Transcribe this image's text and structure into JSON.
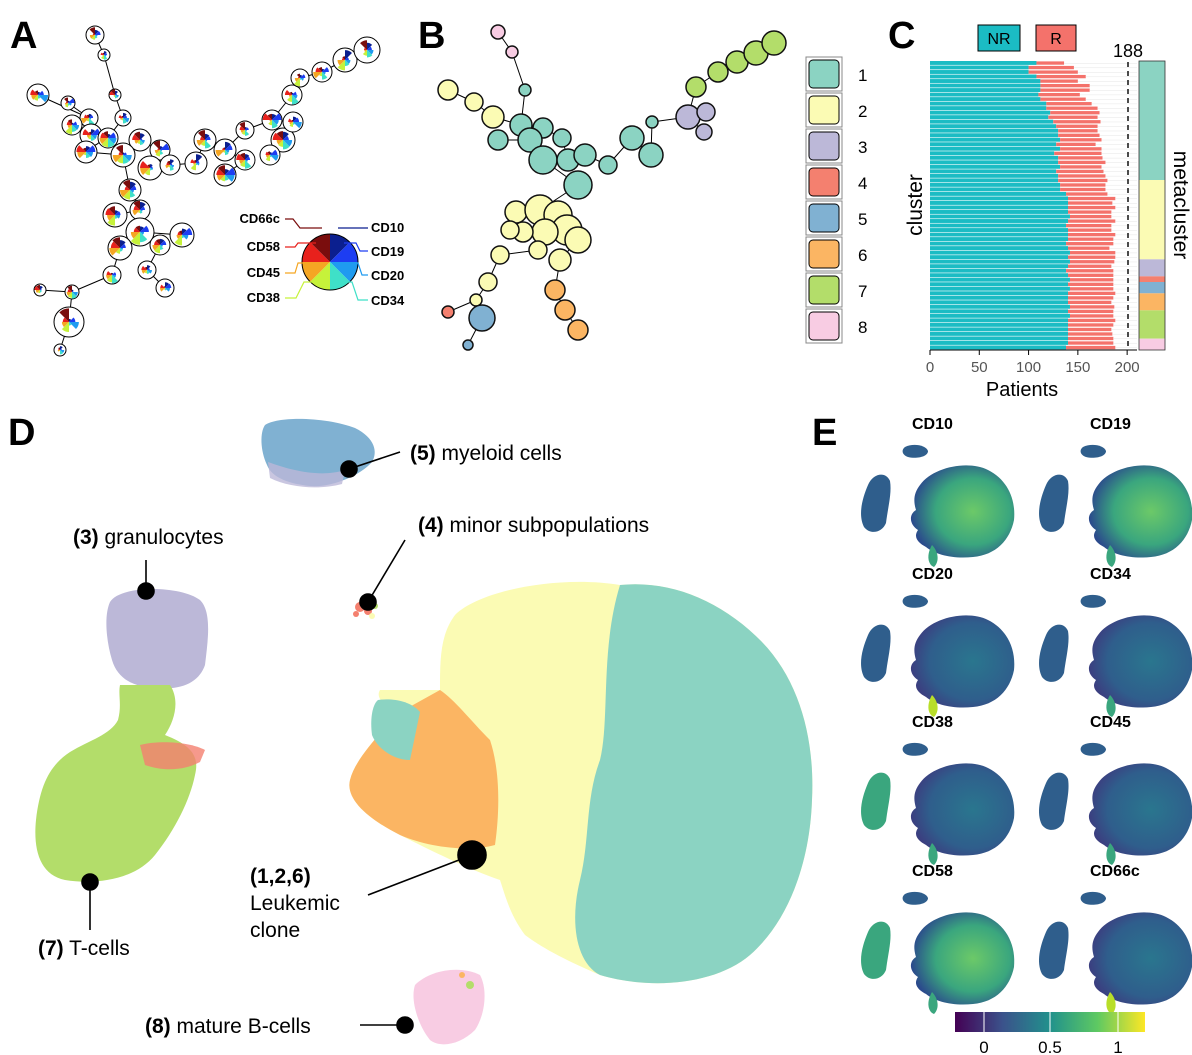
{
  "panels": {
    "a": "A",
    "b": "B",
    "c": "C",
    "d": "D",
    "e": "E"
  },
  "panel_a": {
    "markers_left": [
      "CD66c",
      "CD58",
      "CD45",
      "CD38"
    ],
    "markers_right": [
      "CD10",
      "CD19",
      "CD20",
      "CD34"
    ],
    "marker_colors": {
      "CD10": "#0b1f8f",
      "CD19": "#1d3df2",
      "CD20": "#1f9bf0",
      "CD34": "#3fe0c8",
      "CD38": "#c6f23a",
      "CD45": "#f5a623",
      "CD58": "#e8211c",
      "CD66c": "#7a0d0d"
    }
  },
  "panel_b": {
    "legend": [
      {
        "label": "1",
        "color": "#8bd3c2"
      },
      {
        "label": "2",
        "color": "#fbfbb4"
      },
      {
        "label": "3",
        "color": "#bcb8d8"
      },
      {
        "label": "4",
        "color": "#f4806f"
      },
      {
        "label": "5",
        "color": "#80b1d2"
      },
      {
        "label": "6",
        "color": "#fbb563"
      },
      {
        "label": "7",
        "color": "#b3dd6a"
      },
      {
        "label": "8",
        "color": "#f8cce3"
      }
    ]
  },
  "panel_c": {
    "legend": {
      "nr": "NR",
      "r": "R"
    },
    "threshold_label": "188",
    "xlabel": "Patients",
    "ylabel": "cluster",
    "right_label": "metacluster",
    "xticks": [
      "0",
      "50",
      "100",
      "150",
      "200"
    ]
  },
  "panel_d": {
    "annotations": {
      "myeloid_num": "(5)",
      "myeloid_text": " myeloid cells",
      "minor_num": "(4)",
      "minor_text": " minor subpopulations",
      "gran_num": "(3)",
      "gran_text": " granulocytes",
      "tcell_num": "(7)",
      "tcell_text": " T-cells",
      "leuk_num": "(1,2,6)",
      "leuk_line1": "Leukemic",
      "leuk_line2": "clone",
      "bcell_num": "(8)",
      "bcell_text": " mature B-cells"
    }
  },
  "panel_e": {
    "titles": [
      "CD10",
      "CD19",
      "CD20",
      "CD34",
      "CD38",
      "CD45",
      "CD58",
      "CD66c"
    ],
    "colorbar_ticks": [
      "0",
      "0.5",
      "1"
    ]
  },
  "chart_data": [
    {
      "type": "bar",
      "panel": "C",
      "xlabel": "Patients",
      "ylabel": "cluster",
      "xlim": [
        0,
        210
      ],
      "threshold": 188,
      "series": [
        {
          "name": "NR",
          "values": [
            108,
            100,
            100,
            108,
            112,
            112,
            112,
            110,
            112,
            118,
            118,
            122,
            120,
            125,
            128,
            130,
            130,
            132,
            128,
            132,
            126,
            130,
            130,
            132,
            128,
            130,
            130,
            132,
            132,
            138,
            140,
            140,
            140,
            140,
            142,
            140,
            138,
            140,
            140,
            140,
            138,
            140,
            142,
            140,
            142,
            140,
            138,
            140,
            142,
            140,
            142,
            140,
            140,
            140,
            142,
            140,
            142,
            140,
            140,
            140,
            140,
            140,
            140,
            138
          ]
        },
        {
          "name": "R",
          "values": [
            28,
            46,
            50,
            50,
            38,
            50,
            50,
            42,
            46,
            46,
            52,
            50,
            50,
            48,
            42,
            40,
            42,
            42,
            40,
            42,
            48,
            45,
            48,
            42,
            48,
            48,
            50,
            46,
            46,
            42,
            48,
            45,
            48,
            44,
            42,
            48,
            46,
            44,
            48,
            46,
            48,
            42,
            46,
            48,
            45,
            44,
            48,
            46,
            44,
            46,
            44,
            48,
            46,
            44,
            45,
            46,
            44,
            48,
            46,
            44,
            45,
            46,
            46,
            50
          ]
        }
      ],
      "metacluster_colors": [
        "#8bd3c2",
        "#fbfbb4",
        "#bcb8d8",
        "#f4806f",
        "#80b1d2",
        "#fbb563",
        "#b3dd6a",
        "#f8cce3"
      ],
      "metacluster_counts": [
        21,
        14,
        3,
        1,
        2,
        3,
        5,
        2
      ]
    }
  ]
}
